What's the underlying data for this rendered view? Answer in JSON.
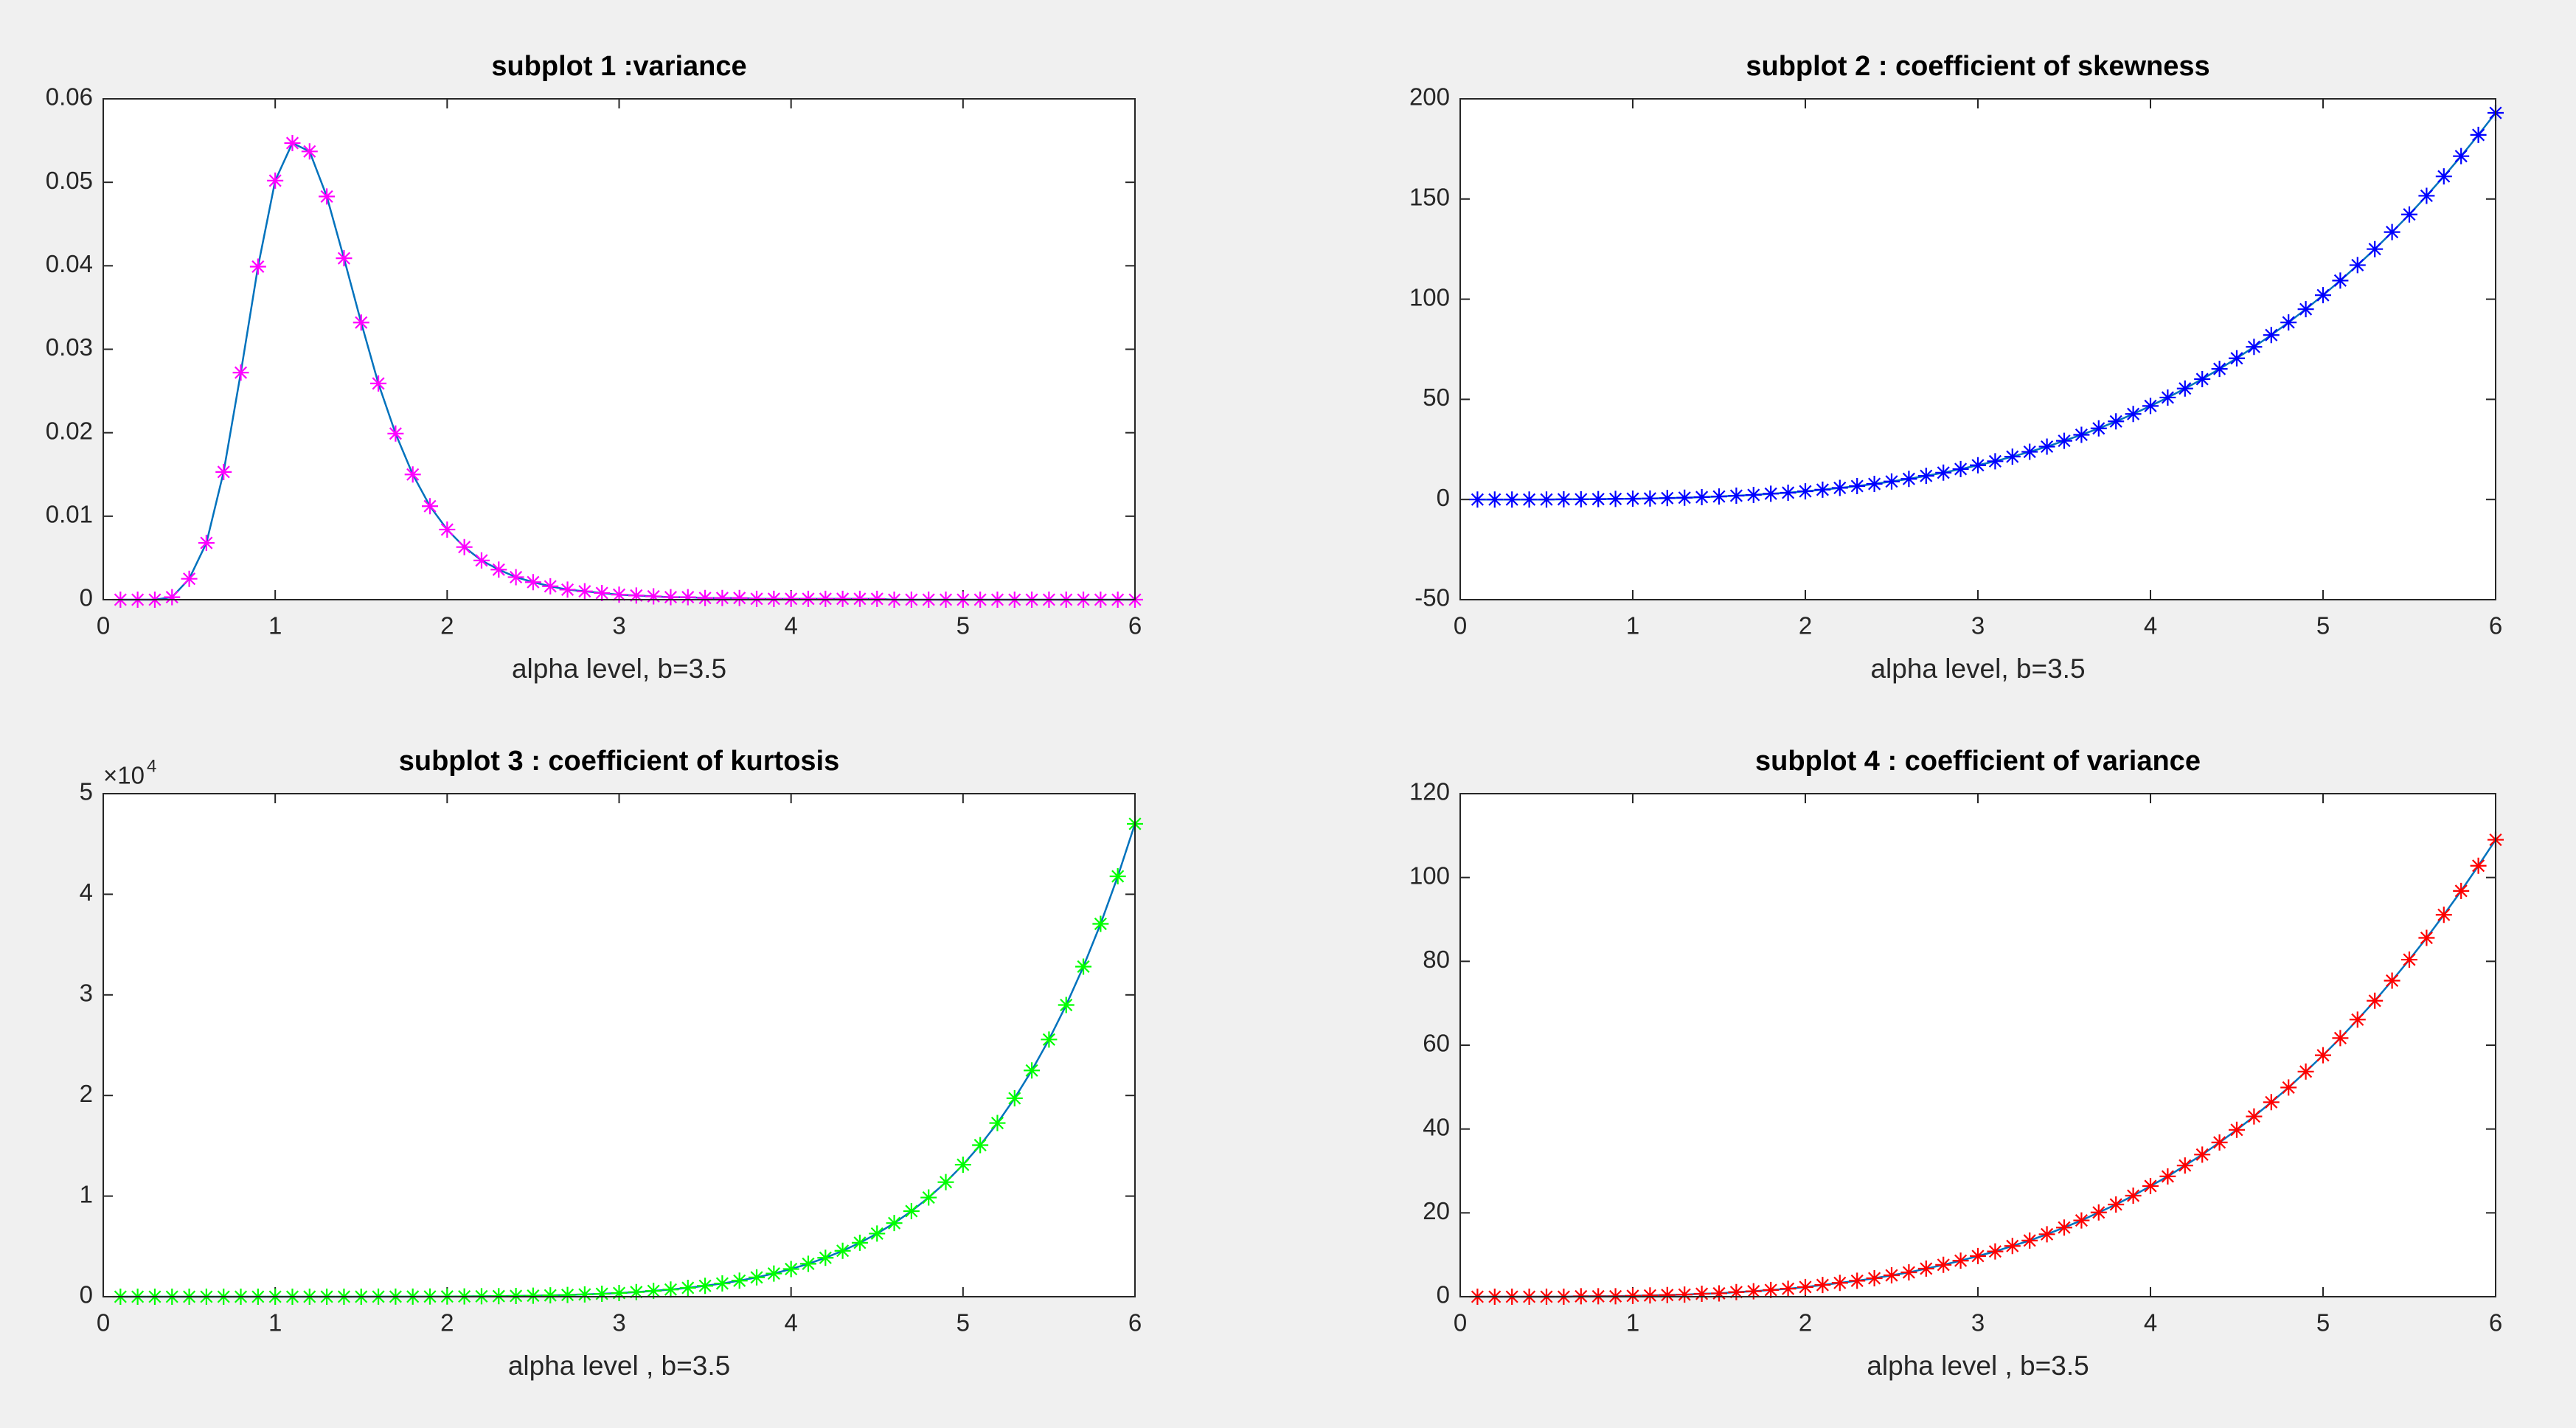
{
  "chart_data": [
    {
      "type": "line",
      "title": "subplot 1 :variance",
      "xlabel": "alpha level, b=3.5",
      "x": [
        0.1,
        0.2,
        0.3,
        0.4,
        0.5,
        0.6,
        0.7,
        0.8,
        0.9,
        1.0,
        1.1,
        1.2,
        1.3,
        1.4,
        1.5,
        1.6,
        1.7,
        1.8,
        1.9,
        2.0,
        2.1,
        2.2,
        2.3,
        2.4,
        2.5,
        2.6,
        2.7,
        2.8,
        2.9,
        3.0,
        3.1,
        3.2,
        3.3,
        3.4,
        3.5,
        3.6,
        3.7,
        3.8,
        3.9,
        4.0,
        4.1,
        4.2,
        4.3,
        4.4,
        4.5,
        4.6,
        4.7,
        4.8,
        4.9,
        5.0,
        5.1,
        5.2,
        5.3,
        5.4,
        5.5,
        5.6,
        5.7,
        5.8,
        5.9,
        6.0
      ],
      "series": [
        {
          "color": "#ff00ff",
          "line_color": "#0072bd",
          "marker": "*",
          "values": [
            0,
            0,
            0,
            0.0003,
            0.0025,
            0.0068,
            0.0153,
            0.0272,
            0.0399,
            0.0502,
            0.0547,
            0.0537,
            0.0483,
            0.0409,
            0.0332,
            0.0259,
            0.0199,
            0.015,
            0.0112,
            0.0084,
            0.0063,
            0.0047,
            0.0036,
            0.0027,
            0.0021,
            0.0016,
            0.0012,
            0.001,
            0.0008,
            0.0006,
            0.0005,
            0.0004,
            0.0003,
            0.0003,
            0.0002,
            0.0002,
            0.0002,
            0.0001,
            0.0001,
            0.0001,
            0.0001,
            0.0001,
            0.0001,
            0.0001,
            0.0001,
            0,
            0,
            0,
            0,
            0,
            0,
            0,
            0,
            0,
            0,
            0,
            0,
            0,
            0,
            0
          ]
        }
      ],
      "xlim": [
        0,
        6
      ],
      "xticks": [
        0,
        1,
        2,
        3,
        4,
        5,
        6
      ],
      "ylim": [
        0,
        0.06
      ],
      "yticks": [
        0,
        0.01,
        0.02,
        0.03,
        0.04,
        0.05,
        0.06
      ]
    },
    {
      "type": "line",
      "title": "subplot 2 : coefficient of skewness",
      "xlabel": "alpha level, b=3.5",
      "x": [
        0.1,
        0.2,
        0.3,
        0.4,
        0.5,
        0.6,
        0.7,
        0.8,
        0.9,
        1.0,
        1.1,
        1.2,
        1.3,
        1.4,
        1.5,
        1.6,
        1.7,
        1.8,
        1.9,
        2.0,
        2.1,
        2.2,
        2.3,
        2.4,
        2.5,
        2.6,
        2.7,
        2.8,
        2.9,
        3.0,
        3.1,
        3.2,
        3.3,
        3.4,
        3.5,
        3.6,
        3.7,
        3.8,
        3.9,
        4.0,
        4.1,
        4.2,
        4.3,
        4.4,
        4.5,
        4.6,
        4.7,
        4.8,
        4.9,
        5.0,
        5.1,
        5.2,
        5.3,
        5.4,
        5.5,
        5.6,
        5.7,
        5.8,
        5.9,
        6.0
      ],
      "series": [
        {
          "color": "#0000ff",
          "line_color": "#0072bd",
          "marker": "*",
          "values": [
            0,
            0,
            0,
            0,
            0,
            0.1,
            0.1,
            0.2,
            0.3,
            0.4,
            0.5,
            0.7,
            0.9,
            1.2,
            1.5,
            1.9,
            2.3,
            2.9,
            3.4,
            4.1,
            4.9,
            5.8,
            6.7,
            7.8,
            9.0,
            10.3,
            11.8,
            13.4,
            15.2,
            17.1,
            19.1,
            21.4,
            23.8,
            26.4,
            29.3,
            32.3,
            35.5,
            39.0,
            42.7,
            46.7,
            50.9,
            55.4,
            60.1,
            65.2,
            70.5,
            76.2,
            82.1,
            88.4,
            95.0,
            102.0,
            109.3,
            117.0,
            125.0,
            133.5,
            142.3,
            151.6,
            161.3,
            171.4,
            182.0,
            193.0
          ]
        }
      ],
      "xlim": [
        0,
        6
      ],
      "xticks": [
        0,
        1,
        2,
        3,
        4,
        5,
        6
      ],
      "ylim": [
        -50,
        200
      ],
      "yticks": [
        -50,
        0,
        50,
        100,
        150,
        200
      ]
    },
    {
      "type": "line",
      "title": "subplot 3 : coefficient of kurtosis",
      "xlabel": "alpha level , b=3.5",
      "x": [
        0.1,
        0.2,
        0.3,
        0.4,
        0.5,
        0.6,
        0.7,
        0.8,
        0.9,
        1.0,
        1.1,
        1.2,
        1.3,
        1.4,
        1.5,
        1.6,
        1.7,
        1.8,
        1.9,
        2.0,
        2.1,
        2.2,
        2.3,
        2.4,
        2.5,
        2.6,
        2.7,
        2.8,
        2.9,
        3.0,
        3.1,
        3.2,
        3.3,
        3.4,
        3.5,
        3.6,
        3.7,
        3.8,
        3.9,
        4.0,
        4.1,
        4.2,
        4.3,
        4.4,
        4.5,
        4.6,
        4.7,
        4.8,
        4.9,
        5.0,
        5.1,
        5.2,
        5.3,
        5.4,
        5.5,
        5.6,
        5.7,
        5.8,
        5.9,
        6.0
      ],
      "series": [
        {
          "color": "#00ff00",
          "line_color": "#0072bd",
          "marker": "*",
          "values": [
            0,
            0,
            0,
            0,
            0,
            0,
            0,
            0,
            0,
            0,
            0,
            1,
            1,
            2,
            3,
            5,
            7,
            10,
            15,
            21,
            30,
            42,
            57,
            77,
            102,
            135,
            176,
            226,
            290,
            367,
            462,
            577,
            715,
            882,
            1080,
            1316,
            1594,
            1921,
            2304,
            2751,
            3270,
            3870,
            4564,
            5362,
            6274,
            7318,
            8506,
            9857,
            11387,
            13117,
            15068,
            17261,
            19725,
            22487,
            25562,
            28993,
            32810,
            37058,
            41786,
            47000
          ]
        }
      ],
      "xlim": [
        0,
        6
      ],
      "xticks": [
        0,
        1,
        2,
        3,
        4,
        5,
        6
      ],
      "ylim": [
        0,
        50000
      ],
      "yticks": [
        0,
        {
          "value": 10000,
          "label": "1"
        },
        {
          "value": 20000,
          "label": "2"
        },
        {
          "value": 30000,
          "label": "3"
        },
        {
          "value": 40000,
          "label": "4"
        },
        {
          "value": 50000,
          "label": "5"
        }
      ],
      "y_exponent": {
        "base": "×10",
        "power": "4"
      }
    },
    {
      "type": "line",
      "title": "subplot 4 : coefficient of variance",
      "xlabel": "alpha level , b=3.5",
      "x": [
        0.1,
        0.2,
        0.3,
        0.4,
        0.5,
        0.6,
        0.7,
        0.8,
        0.9,
        1.0,
        1.1,
        1.2,
        1.3,
        1.4,
        1.5,
        1.6,
        1.7,
        1.8,
        1.9,
        2.0,
        2.1,
        2.2,
        2.3,
        2.4,
        2.5,
        2.6,
        2.7,
        2.8,
        2.9,
        3.0,
        3.1,
        3.2,
        3.3,
        3.4,
        3.5,
        3.6,
        3.7,
        3.8,
        3.9,
        4.0,
        4.1,
        4.2,
        4.3,
        4.4,
        4.5,
        4.6,
        4.7,
        4.8,
        4.9,
        5.0,
        5.1,
        5.2,
        5.3,
        5.4,
        5.5,
        5.6,
        5.7,
        5.8,
        5.9,
        6.0
      ],
      "series": [
        {
          "color": "#ff0000",
          "line_color": "#0072bd",
          "marker": "*",
          "values": [
            0,
            0,
            0,
            0,
            0,
            0,
            0.1,
            0.1,
            0.1,
            0.2,
            0.3,
            0.4,
            0.5,
            0.7,
            0.8,
            1.1,
            1.3,
            1.6,
            1.9,
            2.3,
            2.8,
            3.3,
            3.8,
            4.4,
            5.1,
            5.8,
            6.7,
            7.6,
            8.6,
            9.7,
            10.8,
            12.1,
            13.4,
            14.9,
            16.5,
            18.2,
            20.1,
            22.0,
            24.1,
            26.4,
            28.7,
            31.3,
            33.9,
            36.8,
            39.8,
            43.0,
            46.4,
            49.9,
            53.7,
            57.6,
            61.7,
            66.1,
            70.6,
            75.4,
            80.4,
            85.6,
            91.1,
            96.8,
            102.8,
            109.0
          ]
        }
      ],
      "xlim": [
        0,
        6
      ],
      "xticks": [
        0,
        1,
        2,
        3,
        4,
        5,
        6
      ],
      "ylim": [
        0,
        120
      ],
      "yticks": [
        0,
        20,
        40,
        60,
        80,
        100,
        120
      ]
    }
  ]
}
